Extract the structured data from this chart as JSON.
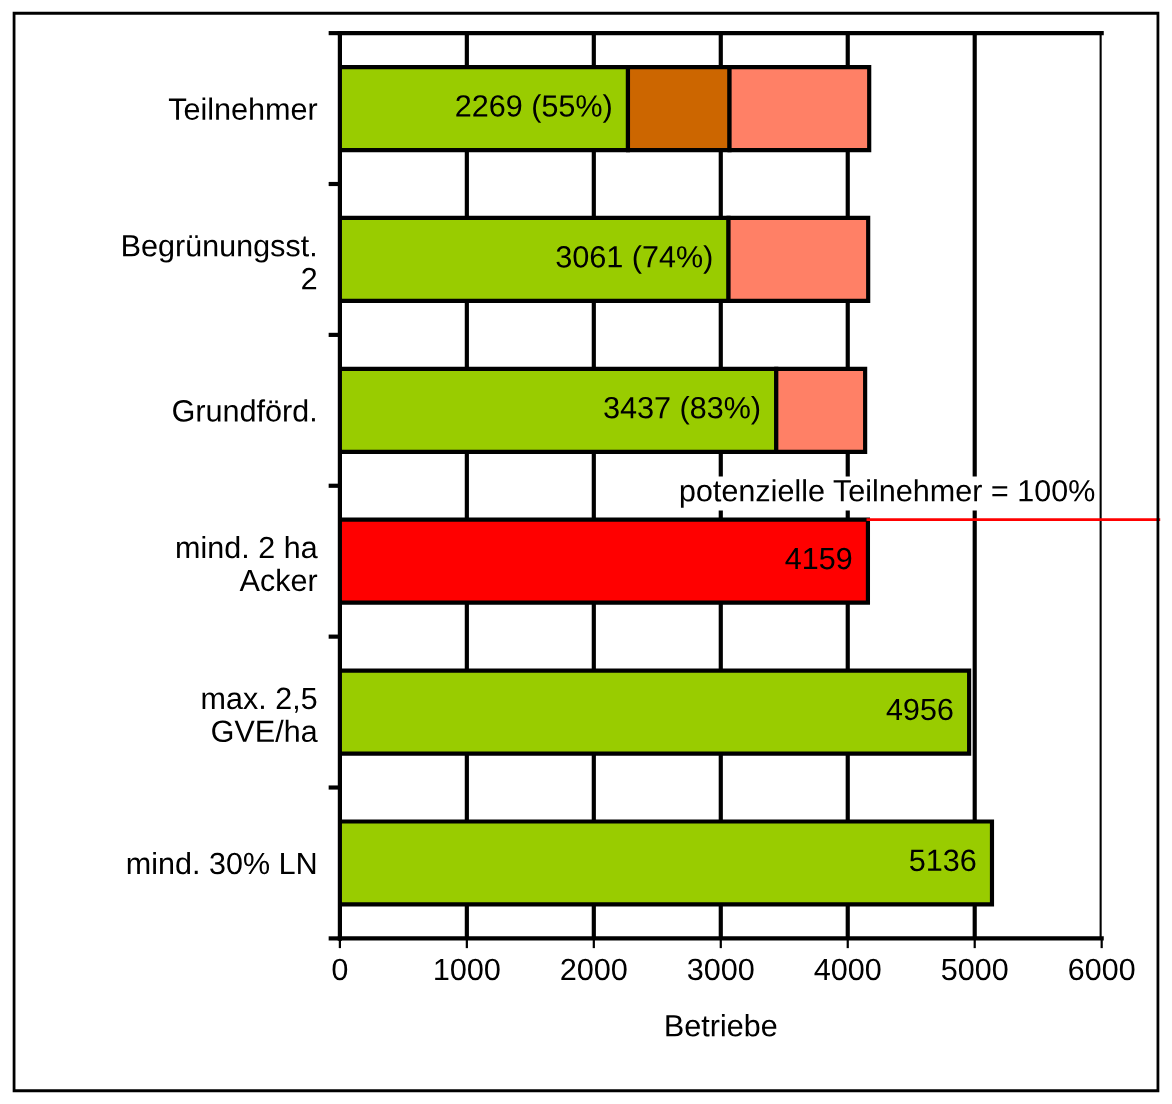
{
  "chart_data": {
    "type": "bar",
    "orientation": "horizontal",
    "stacked": true,
    "categories": [
      "Teilnehmer",
      "Begrünungsst.\n2",
      "Grundförd.",
      "mind. 2 ha\nAcker",
      "max. 2,5\nGVE/ha",
      "mind. 30% LN"
    ],
    "series": [
      {
        "colors": [
          "#99cc00",
          "#99cc00",
          "#99cc00",
          "#ff0000",
          "#99cc00",
          "#99cc00"
        ],
        "values": [
          2269,
          3061,
          3437,
          4159,
          4956,
          5136
        ],
        "value_labels": [
          "2269 (55%)",
          "3061 (74%)",
          "3437 (83%)",
          "4159",
          "4956",
          "5136"
        ]
      },
      {
        "color": "#cc6600",
        "values": [
          800,
          null,
          null,
          null,
          null,
          null
        ]
      },
      {
        "color": "#ff8066",
        "values": [
          1100,
          1100,
          700,
          null,
          null,
          null
        ]
      }
    ],
    "xlabel": "Betriebe",
    "xlim": [
      0,
      6000
    ],
    "xticks": [
      0,
      1000,
      2000,
      3000,
      4000,
      5000,
      6000
    ],
    "grid": "x",
    "legend": false,
    "annotations": [
      {
        "text": "potenzielle Teilnehmer = 100%",
        "x": 4159,
        "y": "mind. 2 ha\nAcker"
      }
    ]
  }
}
